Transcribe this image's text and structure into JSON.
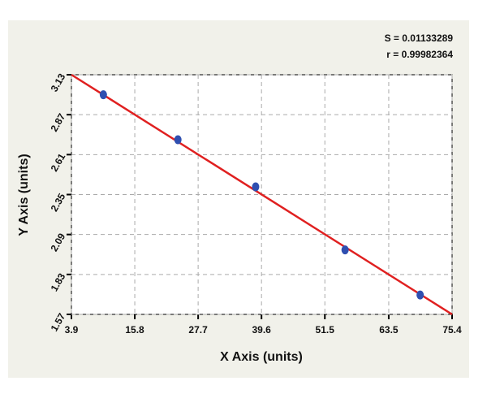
{
  "chart_data": {
    "type": "scatter",
    "x_label": "X Axis (units)",
    "y_label": "Y Axis (units)",
    "annotations": [
      "S = 0.01133289",
      "r = 0.99982364"
    ],
    "series": [
      {
        "color": "#2f4fb0",
        "x": [
          9.9,
          23.9,
          38.5,
          55.3,
          69.4
        ],
        "values": [
          3.0,
          2.707,
          2.4,
          1.99,
          1.696
        ]
      }
    ],
    "fit": {
      "color": "#e02020",
      "x": [
        3.9,
        75.4
      ],
      "values": [
        3.13,
        1.57
      ]
    },
    "xlim": [
      3.9,
      75.4
    ],
    "xticks": [
      3.9,
      15.8,
      27.7,
      39.6,
      51.5,
      63.5,
      75.4
    ],
    "ylim": [
      1.57,
      3.13
    ],
    "yticks": [
      1.57,
      1.83,
      2.09,
      2.35,
      2.61,
      2.87,
      3.13
    ],
    "grid": true
  }
}
